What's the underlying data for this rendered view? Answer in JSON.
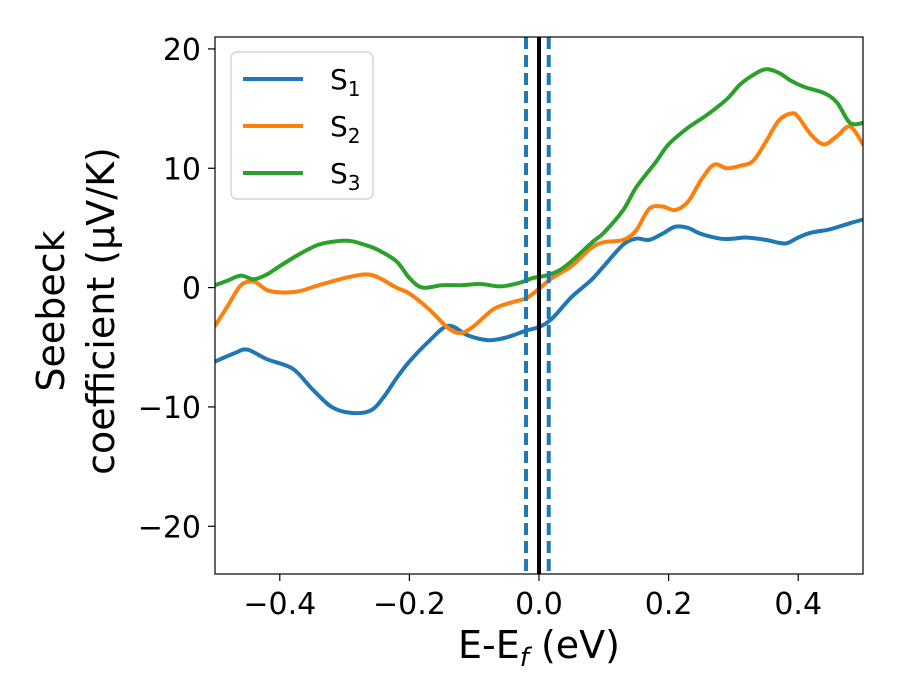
{
  "chart_data": {
    "type": "line",
    "xlabel": {
      "main": "E-E",
      "sub": "f",
      "unit": " (eV)"
    },
    "ylabel": {
      "line1": "Seebeck",
      "line2": "coefficient  (μV/K)"
    },
    "xlim": [
      -0.5,
      0.5
    ],
    "ylim": [
      -24,
      21
    ],
    "xticks": [
      -0.4,
      -0.2,
      0.0,
      0.2,
      0.4
    ],
    "xtick_labels": [
      "−0.4",
      "−0.2",
      "0.0",
      "0.2",
      "0.4"
    ],
    "yticks": [
      -20,
      -10,
      0,
      10,
      20
    ],
    "ytick_labels": [
      "−20",
      "−10",
      "0",
      "10",
      "20"
    ],
    "grid": false,
    "legend_position": "top-left",
    "vlines": [
      {
        "x": 0.0,
        "style": "solid",
        "color": "#000000"
      },
      {
        "x": -0.02,
        "style": "dashed",
        "color": "#1f77b4"
      },
      {
        "x": 0.015,
        "style": "dashed",
        "color": "#1f77b4"
      }
    ],
    "series": [
      {
        "name": "S",
        "sub": "1",
        "color": "#1f77b4",
        "x": [
          -0.5,
          -0.47,
          -0.45,
          -0.42,
          -0.38,
          -0.35,
          -0.32,
          -0.29,
          -0.26,
          -0.24,
          -0.22,
          -0.2,
          -0.17,
          -0.14,
          -0.11,
          -0.08,
          -0.06,
          -0.04,
          -0.02,
          0.0,
          0.02,
          0.05,
          0.08,
          0.1,
          0.13,
          0.15,
          0.17,
          0.19,
          0.21,
          0.23,
          0.25,
          0.28,
          0.3,
          0.32,
          0.35,
          0.38,
          0.4,
          0.42,
          0.45,
          0.48,
          0.5
        ],
        "y": [
          -6.2,
          -5.5,
          -5.2,
          -6.0,
          -6.8,
          -8.5,
          -10.0,
          -10.5,
          -10.3,
          -9.2,
          -7.6,
          -6.2,
          -4.5,
          -3.2,
          -4.0,
          -4.4,
          -4.3,
          -4.0,
          -3.6,
          -3.3,
          -2.6,
          -0.8,
          0.6,
          1.8,
          3.6,
          4.1,
          4.0,
          4.5,
          5.1,
          5.0,
          4.5,
          4.1,
          4.1,
          4.2,
          4.0,
          3.7,
          4.2,
          4.6,
          4.9,
          5.4,
          5.7
        ]
      },
      {
        "name": "S",
        "sub": "2",
        "color": "#ff7f0e",
        "x": [
          -0.5,
          -0.48,
          -0.46,
          -0.44,
          -0.42,
          -0.4,
          -0.37,
          -0.34,
          -0.3,
          -0.27,
          -0.25,
          -0.22,
          -0.2,
          -0.17,
          -0.14,
          -0.12,
          -0.1,
          -0.07,
          -0.04,
          -0.02,
          0.0,
          0.02,
          0.05,
          0.08,
          0.1,
          0.13,
          0.15,
          0.17,
          0.19,
          0.21,
          0.23,
          0.25,
          0.27,
          0.29,
          0.31,
          0.33,
          0.35,
          0.37,
          0.39,
          0.4,
          0.42,
          0.44,
          0.46,
          0.48,
          0.5
        ],
        "y": [
          -3.2,
          -1.5,
          0.2,
          0.5,
          -0.2,
          -0.4,
          -0.3,
          0.2,
          0.8,
          1.1,
          0.9,
          0.0,
          -0.5,
          -1.8,
          -3.4,
          -3.8,
          -3.2,
          -1.8,
          -1.2,
          -0.9,
          -0.1,
          0.8,
          1.8,
          3.3,
          3.8,
          4.0,
          4.8,
          6.6,
          6.8,
          6.5,
          7.2,
          9.0,
          10.3,
          10.0,
          10.2,
          10.6,
          12.2,
          14.0,
          14.6,
          14.3,
          12.8,
          12.0,
          12.7,
          13.5,
          12.0
        ]
      },
      {
        "name": "S",
        "sub": "3",
        "color": "#2ca02c",
        "x": [
          -0.5,
          -0.48,
          -0.46,
          -0.44,
          -0.42,
          -0.4,
          -0.37,
          -0.34,
          -0.31,
          -0.29,
          -0.27,
          -0.25,
          -0.22,
          -0.2,
          -0.18,
          -0.15,
          -0.12,
          -0.09,
          -0.06,
          -0.03,
          -0.01,
          0.01,
          0.03,
          0.05,
          0.08,
          0.1,
          0.13,
          0.15,
          0.18,
          0.2,
          0.23,
          0.26,
          0.29,
          0.31,
          0.33,
          0.35,
          0.37,
          0.39,
          0.41,
          0.44,
          0.46,
          0.48,
          0.5
        ],
        "y": [
          0.2,
          0.6,
          1.0,
          0.7,
          1.1,
          1.8,
          2.8,
          3.6,
          3.9,
          3.9,
          3.6,
          3.2,
          2.2,
          0.8,
          0.0,
          0.2,
          0.2,
          0.3,
          0.1,
          0.4,
          0.8,
          1.0,
          1.4,
          2.2,
          3.7,
          4.6,
          6.5,
          8.4,
          10.5,
          12.0,
          13.4,
          14.5,
          15.8,
          17.0,
          17.8,
          18.3,
          18.0,
          17.3,
          16.8,
          16.3,
          15.5,
          13.8,
          13.8
        ]
      }
    ]
  }
}
